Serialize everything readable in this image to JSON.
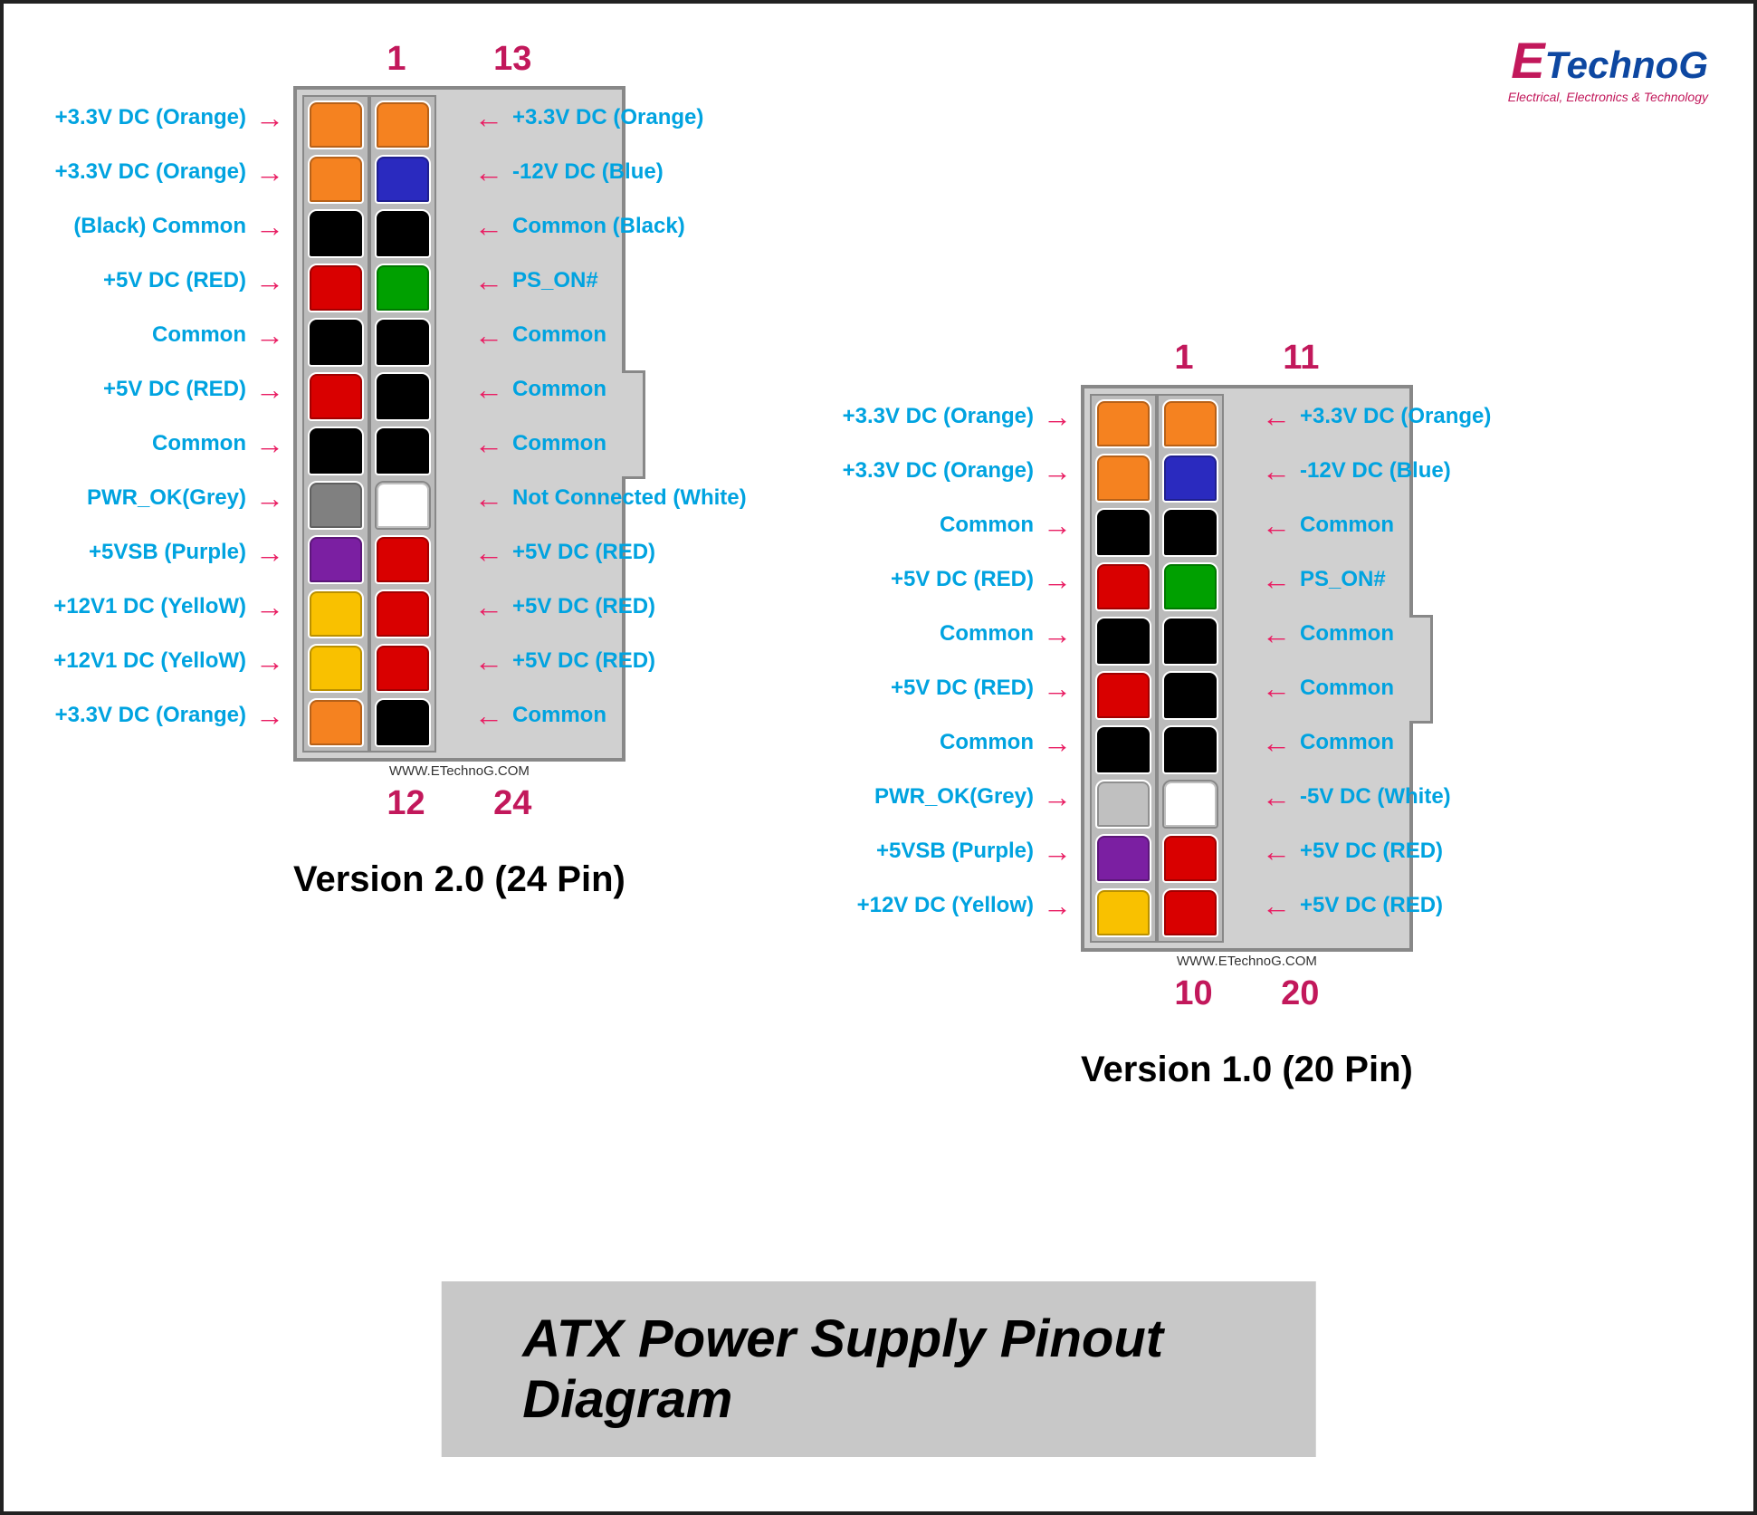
{
  "logo": {
    "e": "E",
    "rest": "TechnoG",
    "sub": "Electrical, Electronics & Technology"
  },
  "colors": {
    "label_text": "#00a3e0",
    "arrow": "#e91e63",
    "pin_number": "#c2185b"
  },
  "main_title": "ATX Power Supply Pinout Diagram",
  "watermark": "WWW.ETechnoG.COM",
  "v2": {
    "title": "Version 2.0 (24 Pin)",
    "top_left_num": "1",
    "top_right_num": "13",
    "bot_left_num": "12",
    "bot_right_num": "24",
    "left_pins": [
      {
        "color": "#f58220",
        "label": "+3.3V DC (Orange)"
      },
      {
        "color": "#f58220",
        "label": "+3.3V DC (Orange)"
      },
      {
        "color": "#000000",
        "label": "(Black) Common"
      },
      {
        "color": "#d90000",
        "label": "+5V DC (RED)"
      },
      {
        "color": "#000000",
        "label": "Common"
      },
      {
        "color": "#d90000",
        "label": "+5V DC (RED)"
      },
      {
        "color": "#000000",
        "label": "Common"
      },
      {
        "color": "#808080",
        "label": "PWR_OK(Grey)"
      },
      {
        "color": "#7b1fa2",
        "label": "+5VSB (Purple)"
      },
      {
        "color": "#f9c100",
        "label": "+12V1 DC (YelloW)"
      },
      {
        "color": "#f9c100",
        "label": "+12V1 DC (YelloW)"
      },
      {
        "color": "#f58220",
        "label": "+3.3V DC (Orange)"
      }
    ],
    "right_pins": [
      {
        "color": "#f58220",
        "label": "+3.3V DC (Orange)"
      },
      {
        "color": "#2a2abf",
        "label": "-12V DC (Blue)"
      },
      {
        "color": "#000000",
        "label": "Common (Black)"
      },
      {
        "color": "#00a000",
        "label": "PS_ON#"
      },
      {
        "color": "#000000",
        "label": "Common"
      },
      {
        "color": "#000000",
        "label": "Common"
      },
      {
        "color": "#000000",
        "label": "Common"
      },
      {
        "color": "#ffffff",
        "label": "Not Connected (White)"
      },
      {
        "color": "#d90000",
        "label": "+5V DC (RED)"
      },
      {
        "color": "#d90000",
        "label": "+5V DC (RED)"
      },
      {
        "color": "#d90000",
        "label": "+5V DC (RED)"
      },
      {
        "color": "#000000",
        "label": "Common"
      }
    ],
    "notch_rows": [
      5,
      6
    ]
  },
  "v1": {
    "title": "Version 1.0  (20 Pin)",
    "top_left_num": "1",
    "top_right_num": "11",
    "bot_left_num": "10",
    "bot_right_num": "20",
    "left_pins": [
      {
        "color": "#f58220",
        "label": "+3.3V DC (Orange)"
      },
      {
        "color": "#f58220",
        "label": "+3.3V DC (Orange)"
      },
      {
        "color": "#000000",
        "label": "Common"
      },
      {
        "color": "#d90000",
        "label": "+5V DC (RED)"
      },
      {
        "color": "#000000",
        "label": "Common"
      },
      {
        "color": "#d90000",
        "label": "+5V DC (RED)"
      },
      {
        "color": "#000000",
        "label": "Common"
      },
      {
        "color": "#c0c0c0",
        "label": "PWR_OK(Grey)"
      },
      {
        "color": "#7b1fa2",
        "label": "+5VSB (Purple)"
      },
      {
        "color": "#f9c100",
        "label": "+12V DC (Yellow)"
      }
    ],
    "right_pins": [
      {
        "color": "#f58220",
        "label": "+3.3V DC (Orange)"
      },
      {
        "color": "#2a2abf",
        "label": "-12V DC (Blue)"
      },
      {
        "color": "#000000",
        "label": "Common"
      },
      {
        "color": "#00a000",
        "label": "PS_ON#"
      },
      {
        "color": "#000000",
        "label": "Common"
      },
      {
        "color": "#000000",
        "label": "Common"
      },
      {
        "color": "#000000",
        "label": "Common"
      },
      {
        "color": "#ffffff",
        "label": "-5V DC (White)"
      },
      {
        "color": "#d90000",
        "label": "+5V DC (RED)"
      },
      {
        "color": "#d90000",
        "label": "+5V DC (RED)"
      }
    ],
    "notch_rows": [
      4,
      5
    ]
  }
}
